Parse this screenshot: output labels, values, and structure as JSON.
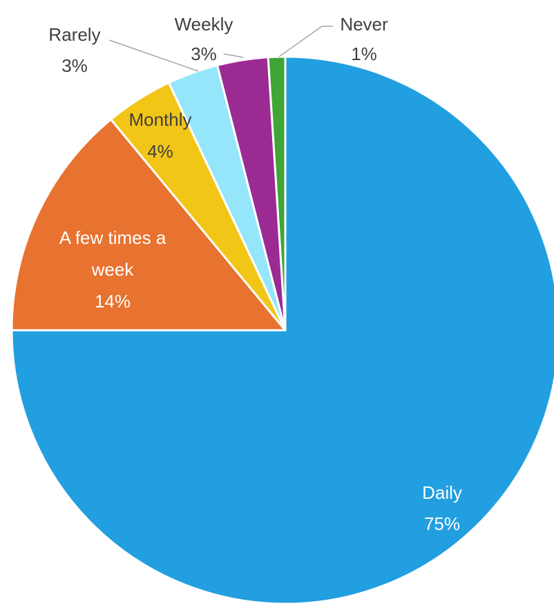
{
  "chart_data": {
    "type": "pie",
    "title": "",
    "series": [
      {
        "values": [
          75,
          14,
          4,
          3,
          3,
          1
        ],
        "categories": [
          "Daily",
          "A few times a week",
          "Monthly",
          "Rarely",
          "Weekly",
          "Never"
        ]
      }
    ],
    "slices": [
      {
        "label": "Daily",
        "label_lines": [
          "Daily"
        ],
        "value": 75,
        "value_label": "75%",
        "color": "#229fe0"
      },
      {
        "label": "A few times a week",
        "label_lines": [
          "A few times a",
          "week"
        ],
        "value": 14,
        "value_label": "14%",
        "color": "#e8722f"
      },
      {
        "label": "Monthly",
        "label_lines": [
          "Monthly"
        ],
        "value": 4,
        "value_label": "4%",
        "color": "#f2c617"
      },
      {
        "label": "Rarely",
        "label_lines": [
          "Rarely"
        ],
        "value": 3,
        "value_label": "3%",
        "color": "#96e6fb"
      },
      {
        "label": "Weekly",
        "label_lines": [
          "Weekly"
        ],
        "value": 3,
        "value_label": "3%",
        "color": "#9b2b93"
      },
      {
        "label": "Never",
        "label_lines": [
          "Never"
        ],
        "value": 1,
        "value_label": "1%",
        "color": "#3fa535"
      }
    ],
    "start_angle": "12 o'clock",
    "direction": "clockwise",
    "data_labels": "category name and percentage",
    "legend": "none"
  }
}
